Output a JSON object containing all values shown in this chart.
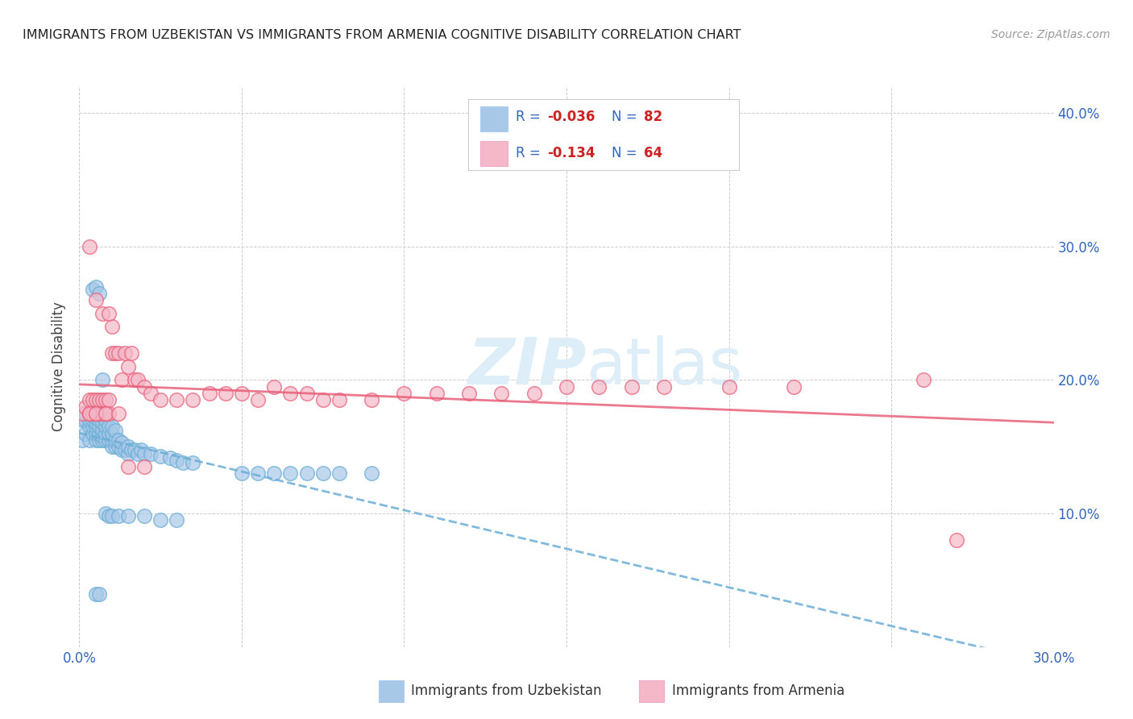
{
  "title": "IMMIGRANTS FROM UZBEKISTAN VS IMMIGRANTS FROM ARMENIA COGNITIVE DISABILITY CORRELATION CHART",
  "source": "Source: ZipAtlas.com",
  "ylabel": "Cognitive Disability",
  "xlim": [
    0.0,
    0.3
  ],
  "ylim": [
    0.0,
    0.42
  ],
  "color_uzbekistan": "#a8c8e8",
  "color_armenia": "#f4b8c8",
  "line_color_uzbekistan": "#6baed6",
  "line_color_armenia": "#e8607a",
  "label_uzbekistan": "Immigrants from Uzbekistan",
  "label_armenia": "Immigrants from Armenia",
  "background_color": "#ffffff",
  "grid_color": "#cccccc",
  "uzbekistan_x": [
    0.001,
    0.001,
    0.002,
    0.002,
    0.002,
    0.003,
    0.003,
    0.003,
    0.003,
    0.004,
    0.004,
    0.004,
    0.004,
    0.005,
    0.005,
    0.005,
    0.005,
    0.005,
    0.005,
    0.006,
    0.006,
    0.006,
    0.006,
    0.007,
    0.007,
    0.007,
    0.007,
    0.007,
    0.008,
    0.008,
    0.008,
    0.008,
    0.009,
    0.009,
    0.009,
    0.01,
    0.01,
    0.01,
    0.01,
    0.011,
    0.011,
    0.011,
    0.012,
    0.012,
    0.013,
    0.013,
    0.014,
    0.015,
    0.015,
    0.016,
    0.017,
    0.018,
    0.019,
    0.02,
    0.022,
    0.025,
    0.028,
    0.03,
    0.032,
    0.035,
    0.004,
    0.005,
    0.006,
    0.007,
    0.008,
    0.009,
    0.01,
    0.012,
    0.015,
    0.02,
    0.025,
    0.03,
    0.05,
    0.055,
    0.06,
    0.065,
    0.07,
    0.075,
    0.08,
    0.09,
    0.005,
    0.006
  ],
  "uzbekistan_y": [
    0.155,
    0.17,
    0.16,
    0.17,
    0.175,
    0.155,
    0.165,
    0.17,
    0.175,
    0.16,
    0.165,
    0.17,
    0.175,
    0.155,
    0.16,
    0.165,
    0.168,
    0.172,
    0.176,
    0.155,
    0.16,
    0.165,
    0.17,
    0.155,
    0.158,
    0.163,
    0.168,
    0.173,
    0.155,
    0.16,
    0.165,
    0.17,
    0.155,
    0.16,
    0.165,
    0.15,
    0.155,
    0.16,
    0.165,
    0.15,
    0.155,
    0.162,
    0.15,
    0.155,
    0.148,
    0.153,
    0.148,
    0.145,
    0.15,
    0.148,
    0.148,
    0.145,
    0.148,
    0.145,
    0.145,
    0.143,
    0.142,
    0.14,
    0.138,
    0.138,
    0.268,
    0.27,
    0.265,
    0.2,
    0.1,
    0.098,
    0.098,
    0.098,
    0.098,
    0.098,
    0.095,
    0.095,
    0.13,
    0.13,
    0.13,
    0.13,
    0.13,
    0.13,
    0.13,
    0.13,
    0.04,
    0.04
  ],
  "armenia_x": [
    0.001,
    0.002,
    0.003,
    0.003,
    0.004,
    0.004,
    0.005,
    0.005,
    0.006,
    0.006,
    0.007,
    0.007,
    0.008,
    0.008,
    0.009,
    0.009,
    0.01,
    0.01,
    0.011,
    0.012,
    0.013,
    0.014,
    0.015,
    0.016,
    0.017,
    0.018,
    0.02,
    0.022,
    0.025,
    0.03,
    0.035,
    0.04,
    0.045,
    0.05,
    0.055,
    0.06,
    0.065,
    0.07,
    0.075,
    0.08,
    0.09,
    0.1,
    0.11,
    0.12,
    0.13,
    0.14,
    0.15,
    0.16,
    0.17,
    0.18,
    0.2,
    0.22,
    0.26,
    0.003,
    0.005,
    0.007,
    0.009,
    0.015,
    0.02,
    0.003,
    0.005,
    0.008,
    0.012,
    0.27
  ],
  "armenia_y": [
    0.175,
    0.18,
    0.175,
    0.185,
    0.175,
    0.185,
    0.175,
    0.185,
    0.175,
    0.185,
    0.175,
    0.185,
    0.175,
    0.185,
    0.175,
    0.185,
    0.24,
    0.22,
    0.22,
    0.22,
    0.2,
    0.22,
    0.21,
    0.22,
    0.2,
    0.2,
    0.195,
    0.19,
    0.185,
    0.185,
    0.185,
    0.19,
    0.19,
    0.19,
    0.185,
    0.195,
    0.19,
    0.19,
    0.185,
    0.185,
    0.185,
    0.19,
    0.19,
    0.19,
    0.19,
    0.19,
    0.195,
    0.195,
    0.195,
    0.195,
    0.195,
    0.195,
    0.2,
    0.3,
    0.26,
    0.25,
    0.25,
    0.135,
    0.135,
    0.175,
    0.175,
    0.175,
    0.175,
    0.08
  ]
}
